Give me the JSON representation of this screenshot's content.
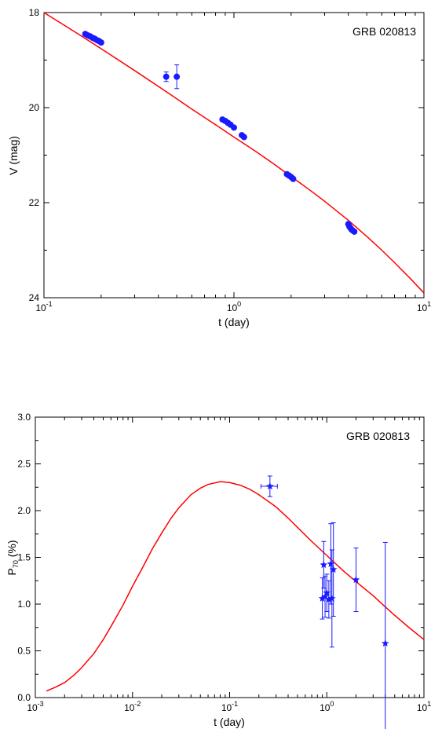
{
  "chart_data": [
    {
      "type": "scatter",
      "panel": "top",
      "title": "GRB 020813",
      "xlabel": "t (day)",
      "ylabel": "V (mag)",
      "x_scale": "log",
      "xlim": [
        0.1,
        10
      ],
      "ylim": [
        24,
        18
      ],
      "y_inverted": true,
      "x_ticks": [
        {
          "base": "10",
          "exp": "-1",
          "value": 0.1
        },
        {
          "base": "10",
          "exp": "0",
          "value": 1
        },
        {
          "base": "10",
          "exp": "1",
          "value": 10
        }
      ],
      "y_ticks": [
        {
          "label": "18",
          "value": 18
        },
        {
          "label": "20",
          "value": 20
        },
        {
          "label": "22",
          "value": 22
        },
        {
          "label": "24",
          "value": 24
        }
      ],
      "grid": false,
      "legend": "none",
      "colors": {
        "points": "#1a1aff",
        "model": "#ff0000"
      },
      "model_curve": {
        "name": "",
        "x": [
          0.1,
          0.15,
          0.2,
          0.3,
          0.45,
          0.6,
          0.8,
          1.0,
          1.3,
          1.6,
          2.0,
          2.5,
          3.0,
          4.0,
          5.0,
          6.0,
          7.0,
          8.5,
          10.0
        ],
        "y": [
          18.0,
          18.44,
          18.76,
          19.22,
          19.69,
          20.03,
          20.36,
          20.62,
          20.92,
          21.17,
          21.45,
          21.73,
          21.97,
          22.37,
          22.71,
          23.0,
          23.26,
          23.6,
          23.9
        ]
      },
      "points": [
        {
          "x": 0.165,
          "y": 18.45,
          "yerr": 0.03
        },
        {
          "x": 0.17,
          "y": 18.48,
          "yerr": 0.03
        },
        {
          "x": 0.175,
          "y": 18.5,
          "yerr": 0.03
        },
        {
          "x": 0.18,
          "y": 18.53,
          "yerr": 0.03
        },
        {
          "x": 0.185,
          "y": 18.55,
          "yerr": 0.03
        },
        {
          "x": 0.19,
          "y": 18.58,
          "yerr": 0.03
        },
        {
          "x": 0.195,
          "y": 18.6,
          "yerr": 0.03
        },
        {
          "x": 0.2,
          "y": 18.63,
          "yerr": 0.03
        },
        {
          "x": 0.44,
          "y": 19.35,
          "yerr": 0.1
        },
        {
          "x": 0.5,
          "y": 19.35,
          "yerr": 0.25
        },
        {
          "x": 0.87,
          "y": 20.25,
          "yerr": 0.03
        },
        {
          "x": 0.9,
          "y": 20.28,
          "yerr": 0.03
        },
        {
          "x": 0.93,
          "y": 20.32,
          "yerr": 0.03
        },
        {
          "x": 0.96,
          "y": 20.36,
          "yerr": 0.03
        },
        {
          "x": 1.0,
          "y": 20.42,
          "yerr": 0.03
        },
        {
          "x": 1.1,
          "y": 20.58,
          "yerr": 0.03
        },
        {
          "x": 1.13,
          "y": 20.62,
          "yerr": 0.03
        },
        {
          "x": 1.9,
          "y": 21.4,
          "yerr": 0.03
        },
        {
          "x": 1.95,
          "y": 21.43,
          "yerr": 0.03
        },
        {
          "x": 2.0,
          "y": 21.46,
          "yerr": 0.03
        },
        {
          "x": 2.05,
          "y": 21.5,
          "yerr": 0.03
        },
        {
          "x": 4.0,
          "y": 22.45,
          "yerr": 0.03
        },
        {
          "x": 4.05,
          "y": 22.5,
          "yerr": 0.03
        },
        {
          "x": 4.1,
          "y": 22.53,
          "yerr": 0.03
        },
        {
          "x": 4.15,
          "y": 22.56,
          "yerr": 0.03
        },
        {
          "x": 4.2,
          "y": 22.58,
          "yerr": 0.03
        },
        {
          "x": 4.3,
          "y": 22.61,
          "yerr": 0.03
        }
      ]
    },
    {
      "type": "scatter",
      "panel": "bottom",
      "title": "GRB 020813",
      "xlabel": "t (day)",
      "ylabel_main": "P",
      "ylabel_sub": "70",
      "ylabel_unit": " (%)",
      "x_scale": "log",
      "xlim": [
        0.001,
        10
      ],
      "ylim": [
        0.0,
        3.0
      ],
      "x_ticks": [
        {
          "base": "10",
          "exp": "-3",
          "value": 0.001
        },
        {
          "base": "10",
          "exp": "-2",
          "value": 0.01
        },
        {
          "base": "10",
          "exp": "-1",
          "value": 0.1
        },
        {
          "base": "10",
          "exp": "0",
          "value": 1
        },
        {
          "base": "10",
          "exp": "1",
          "value": 10
        }
      ],
      "y_ticks": [
        {
          "label": "0.0",
          "value": 0.0
        },
        {
          "label": "0.5",
          "value": 0.5
        },
        {
          "label": "1.0",
          "value": 1.0
        },
        {
          "label": "1.5",
          "value": 1.5
        },
        {
          "label": "2.0",
          "value": 2.0
        },
        {
          "label": "2.5",
          "value": 2.5
        },
        {
          "label": "3.0",
          "value": 3.0
        }
      ],
      "grid": false,
      "legend": "none",
      "colors": {
        "points": "#1a1aff",
        "model": "#ff0000"
      },
      "model_curve": {
        "name": "",
        "x": [
          0.0013,
          0.0016,
          0.002,
          0.0025,
          0.003,
          0.004,
          0.005,
          0.006,
          0.008,
          0.01,
          0.013,
          0.016,
          0.02,
          0.025,
          0.03,
          0.04,
          0.05,
          0.06,
          0.08,
          0.1,
          0.13,
          0.16,
          0.2,
          0.3,
          0.4,
          0.5,
          0.7,
          1.0,
          1.5,
          2.0,
          3.0,
          4.0,
          5.0,
          7.0,
          10.0
        ],
        "y": [
          0.07,
          0.11,
          0.16,
          0.24,
          0.32,
          0.47,
          0.62,
          0.76,
          0.99,
          1.19,
          1.41,
          1.59,
          1.76,
          1.92,
          2.03,
          2.17,
          2.24,
          2.28,
          2.31,
          2.3,
          2.27,
          2.23,
          2.17,
          2.04,
          1.92,
          1.82,
          1.67,
          1.52,
          1.35,
          1.24,
          1.09,
          0.97,
          0.88,
          0.75,
          0.62
        ]
      },
      "points": [
        {
          "x": 0.26,
          "y": 2.26,
          "yerr": 0.11,
          "xerr_low": 0.05,
          "xerr_high": 0.05
        },
        {
          "x": 0.9,
          "y": 1.06,
          "yerr": 0.22
        },
        {
          "x": 0.93,
          "y": 1.42,
          "yerr": 0.25
        },
        {
          "x": 0.96,
          "y": 1.08,
          "yerr": 0.22
        },
        {
          "x": 1.0,
          "y": 1.12,
          "yerr": 0.2
        },
        {
          "x": 1.05,
          "y": 1.05,
          "yerr": 0.2
        },
        {
          "x": 1.1,
          "y": 1.43,
          "yerr": 0.43
        },
        {
          "x": 1.13,
          "y": 1.06,
          "yerr": 0.52
        },
        {
          "x": 1.17,
          "y": 1.37,
          "yerr": 0.5
        },
        {
          "x": 2.0,
          "y": 1.26,
          "yerr": 0.34
        },
        {
          "x": 4.0,
          "y": 0.58,
          "yerr": 1.08
        }
      ]
    }
  ]
}
